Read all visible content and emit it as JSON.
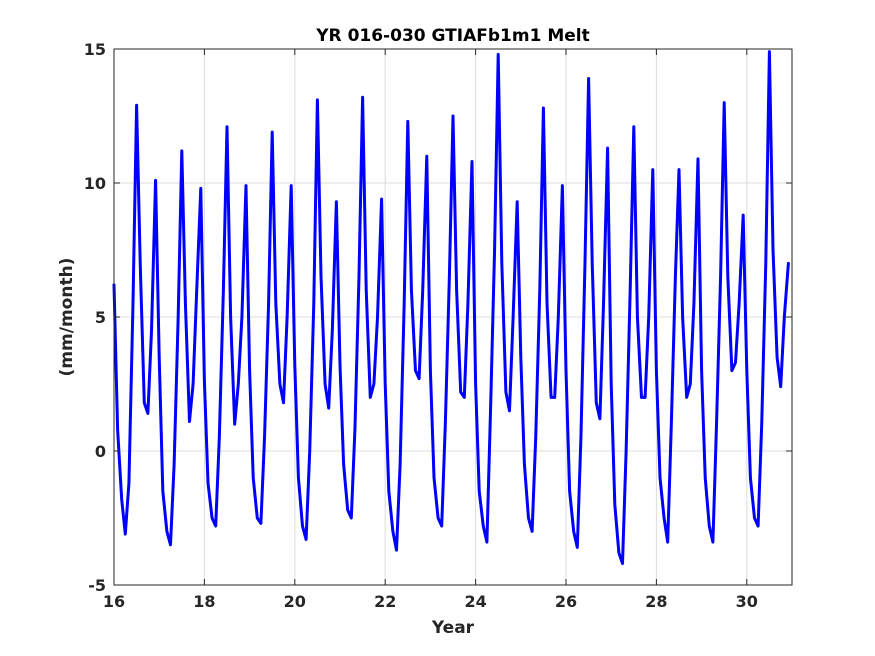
{
  "chart_data": {
    "type": "line",
    "title": "YR 016-030 GTIAFb1m1 Melt",
    "xlabel": "Year",
    "ylabel": "(mm/month)",
    "xlim": [
      16,
      31
    ],
    "ylim": [
      -5,
      15
    ],
    "xticks": [
      16,
      18,
      20,
      22,
      24,
      26,
      28,
      30
    ],
    "yticks": [
      -5,
      0,
      5,
      10,
      15
    ],
    "grid": true,
    "legend": "none",
    "line_color": "#0000ff",
    "series": [
      {
        "x": [
          16.0,
          16.08,
          16.17,
          16.25,
          16.33,
          16.42,
          16.5,
          16.58,
          16.67,
          16.75,
          16.83,
          16.92,
          17.0,
          17.08,
          17.17,
          17.25,
          17.33,
          17.42,
          17.5,
          17.58,
          17.67,
          17.75,
          17.83,
          17.92,
          18.0,
          18.08,
          18.17,
          18.25,
          18.33,
          18.42,
          18.5,
          18.58,
          18.67,
          18.75,
          18.83,
          18.92,
          19.0,
          19.08,
          19.17,
          19.25,
          19.33,
          19.42,
          19.5,
          19.58,
          19.67,
          19.75,
          19.83,
          19.92,
          20.0,
          20.08,
          20.17,
          20.25,
          20.33,
          20.42,
          20.5,
          20.58,
          20.67,
          20.75,
          20.83,
          20.92,
          21.0,
          21.08,
          21.17,
          21.25,
          21.33,
          21.42,
          21.5,
          21.58,
          21.67,
          21.75,
          21.83,
          21.92,
          22.0,
          22.08,
          22.17,
          22.25,
          22.33,
          22.42,
          22.5,
          22.58,
          22.67,
          22.75,
          22.83,
          22.92,
          23.0,
          23.08,
          23.17,
          23.25,
          23.33,
          23.42,
          23.5,
          23.58,
          23.67,
          23.75,
          23.83,
          23.92,
          24.0,
          24.08,
          24.17,
          24.25,
          24.33,
          24.42,
          24.5,
          24.58,
          24.67,
          24.75,
          24.83,
          24.92,
          25.0,
          25.08,
          25.17,
          25.25,
          25.33,
          25.42,
          25.5,
          25.58,
          25.67,
          25.75,
          25.83,
          25.92,
          26.0,
          26.08,
          26.17,
          26.25,
          26.33,
          26.42,
          26.5,
          26.58,
          26.67,
          26.75,
          26.83,
          26.92,
          27.0,
          27.08,
          27.17,
          27.25,
          27.33,
          27.42,
          27.5,
          27.58,
          27.67,
          27.75,
          27.83,
          27.92,
          28.0,
          28.08,
          28.17,
          28.25,
          28.33,
          28.42,
          28.5,
          28.58,
          28.67,
          28.75,
          28.83,
          28.92,
          29.0,
          29.08,
          29.17,
          29.25,
          29.33,
          29.42,
          29.5,
          29.58,
          29.67,
          29.75,
          29.83,
          29.92,
          30.0,
          30.08,
          30.17,
          30.25,
          30.33,
          30.42,
          30.5,
          30.58,
          30.67,
          30.75,
          30.83,
          30.92
        ],
        "y": [
          6.2,
          0.8,
          -1.8,
          -3.1,
          -1.2,
          5.5,
          12.9,
          7.0,
          1.8,
          1.4,
          4.5,
          10.1,
          3.5,
          -1.5,
          -3.0,
          -3.5,
          -0.5,
          5.0,
          11.2,
          5.5,
          1.1,
          2.5,
          6.0,
          9.8,
          2.6,
          -1.2,
          -2.5,
          -2.8,
          0.5,
          6.0,
          12.1,
          5.0,
          1.0,
          2.5,
          5.0,
          9.9,
          3.0,
          -1.0,
          -2.5,
          -2.7,
          0.5,
          5.5,
          11.9,
          5.5,
          2.5,
          1.8,
          5.0,
          9.9,
          3.2,
          -1.0,
          -2.8,
          -3.3,
          0.0,
          5.5,
          13.1,
          6.5,
          2.5,
          1.6,
          4.5,
          9.3,
          3.2,
          -0.5,
          -2.2,
          -2.5,
          0.8,
          6.5,
          13.2,
          6.0,
          2.0,
          2.5,
          5.0,
          9.4,
          2.5,
          -1.5,
          -3.0,
          -3.7,
          -0.5,
          5.5,
          12.3,
          6.0,
          3.0,
          2.7,
          6.0,
          11.0,
          3.0,
          -1.0,
          -2.5,
          -2.8,
          1.0,
          6.5,
          12.5,
          6.0,
          2.2,
          2.0,
          5.5,
          10.8,
          2.5,
          -1.5,
          -2.8,
          -3.4,
          1.5,
          7.5,
          14.8,
          7.0,
          2.2,
          1.5,
          5.0,
          9.3,
          3.5,
          -0.5,
          -2.5,
          -3.0,
          0.5,
          6.0,
          12.8,
          5.5,
          2.0,
          2.0,
          5.0,
          9.9,
          3.0,
          -1.5,
          -3.0,
          -3.6,
          0.5,
          7.0,
          13.9,
          7.0,
          1.8,
          1.2,
          5.5,
          11.3,
          2.5,
          -2.0,
          -3.8,
          -4.2,
          0.0,
          6.0,
          12.1,
          5.0,
          2.0,
          2.0,
          5.0,
          10.5,
          3.0,
          -1.0,
          -2.5,
          -3.4,
          1.0,
          6.5,
          10.5,
          5.0,
          2.0,
          2.5,
          5.5,
          10.9,
          3.0,
          -1.0,
          -2.8,
          -3.4,
          1.0,
          6.5,
          13.0,
          6.5,
          3.0,
          3.3,
          5.5,
          8.8,
          3.0,
          -1.0,
          -2.5,
          -2.8,
          1.0,
          7.0,
          14.9,
          7.5,
          3.5,
          2.4,
          5.0,
          7.0
        ]
      }
    ]
  }
}
